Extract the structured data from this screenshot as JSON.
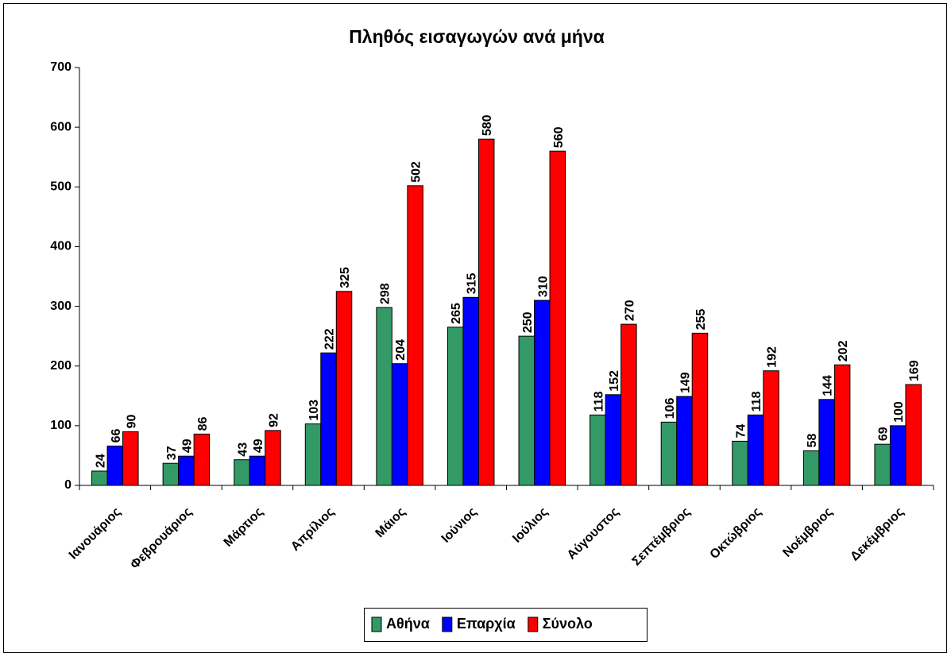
{
  "chart_data": {
    "type": "bar",
    "title": "Πληθός εισαγωγών ανά μήνα",
    "categories": [
      "Ιανουάριος",
      "Φεβρουάριος",
      "Μάρτιος",
      "Απρίλιος",
      "Μάιος",
      "Ιούνιος",
      "Ιούλιος",
      "Αύγουστος",
      "Σεπτέμβριος",
      "Οκτώβριος",
      "Νοέμβριος",
      "Δεκέμβριος"
    ],
    "series": [
      {
        "name": "Αθήνα",
        "color": "#339966",
        "values": [
          24,
          37,
          43,
          103,
          298,
          265,
          250,
          118,
          106,
          74,
          58,
          69
        ]
      },
      {
        "name": "Επαρχία",
        "color": "#0000ff",
        "values": [
          66,
          49,
          49,
          222,
          204,
          315,
          310,
          152,
          149,
          118,
          144,
          100
        ]
      },
      {
        "name": "Σύνολο",
        "color": "#ff0000",
        "values": [
          90,
          86,
          92,
          325,
          502,
          580,
          560,
          270,
          255,
          192,
          202,
          169
        ]
      }
    ],
    "ylim": [
      0,
      700
    ],
    "yticks": [
      0,
      100,
      200,
      300,
      400,
      500,
      600,
      700
    ],
    "legend": "bottom"
  }
}
